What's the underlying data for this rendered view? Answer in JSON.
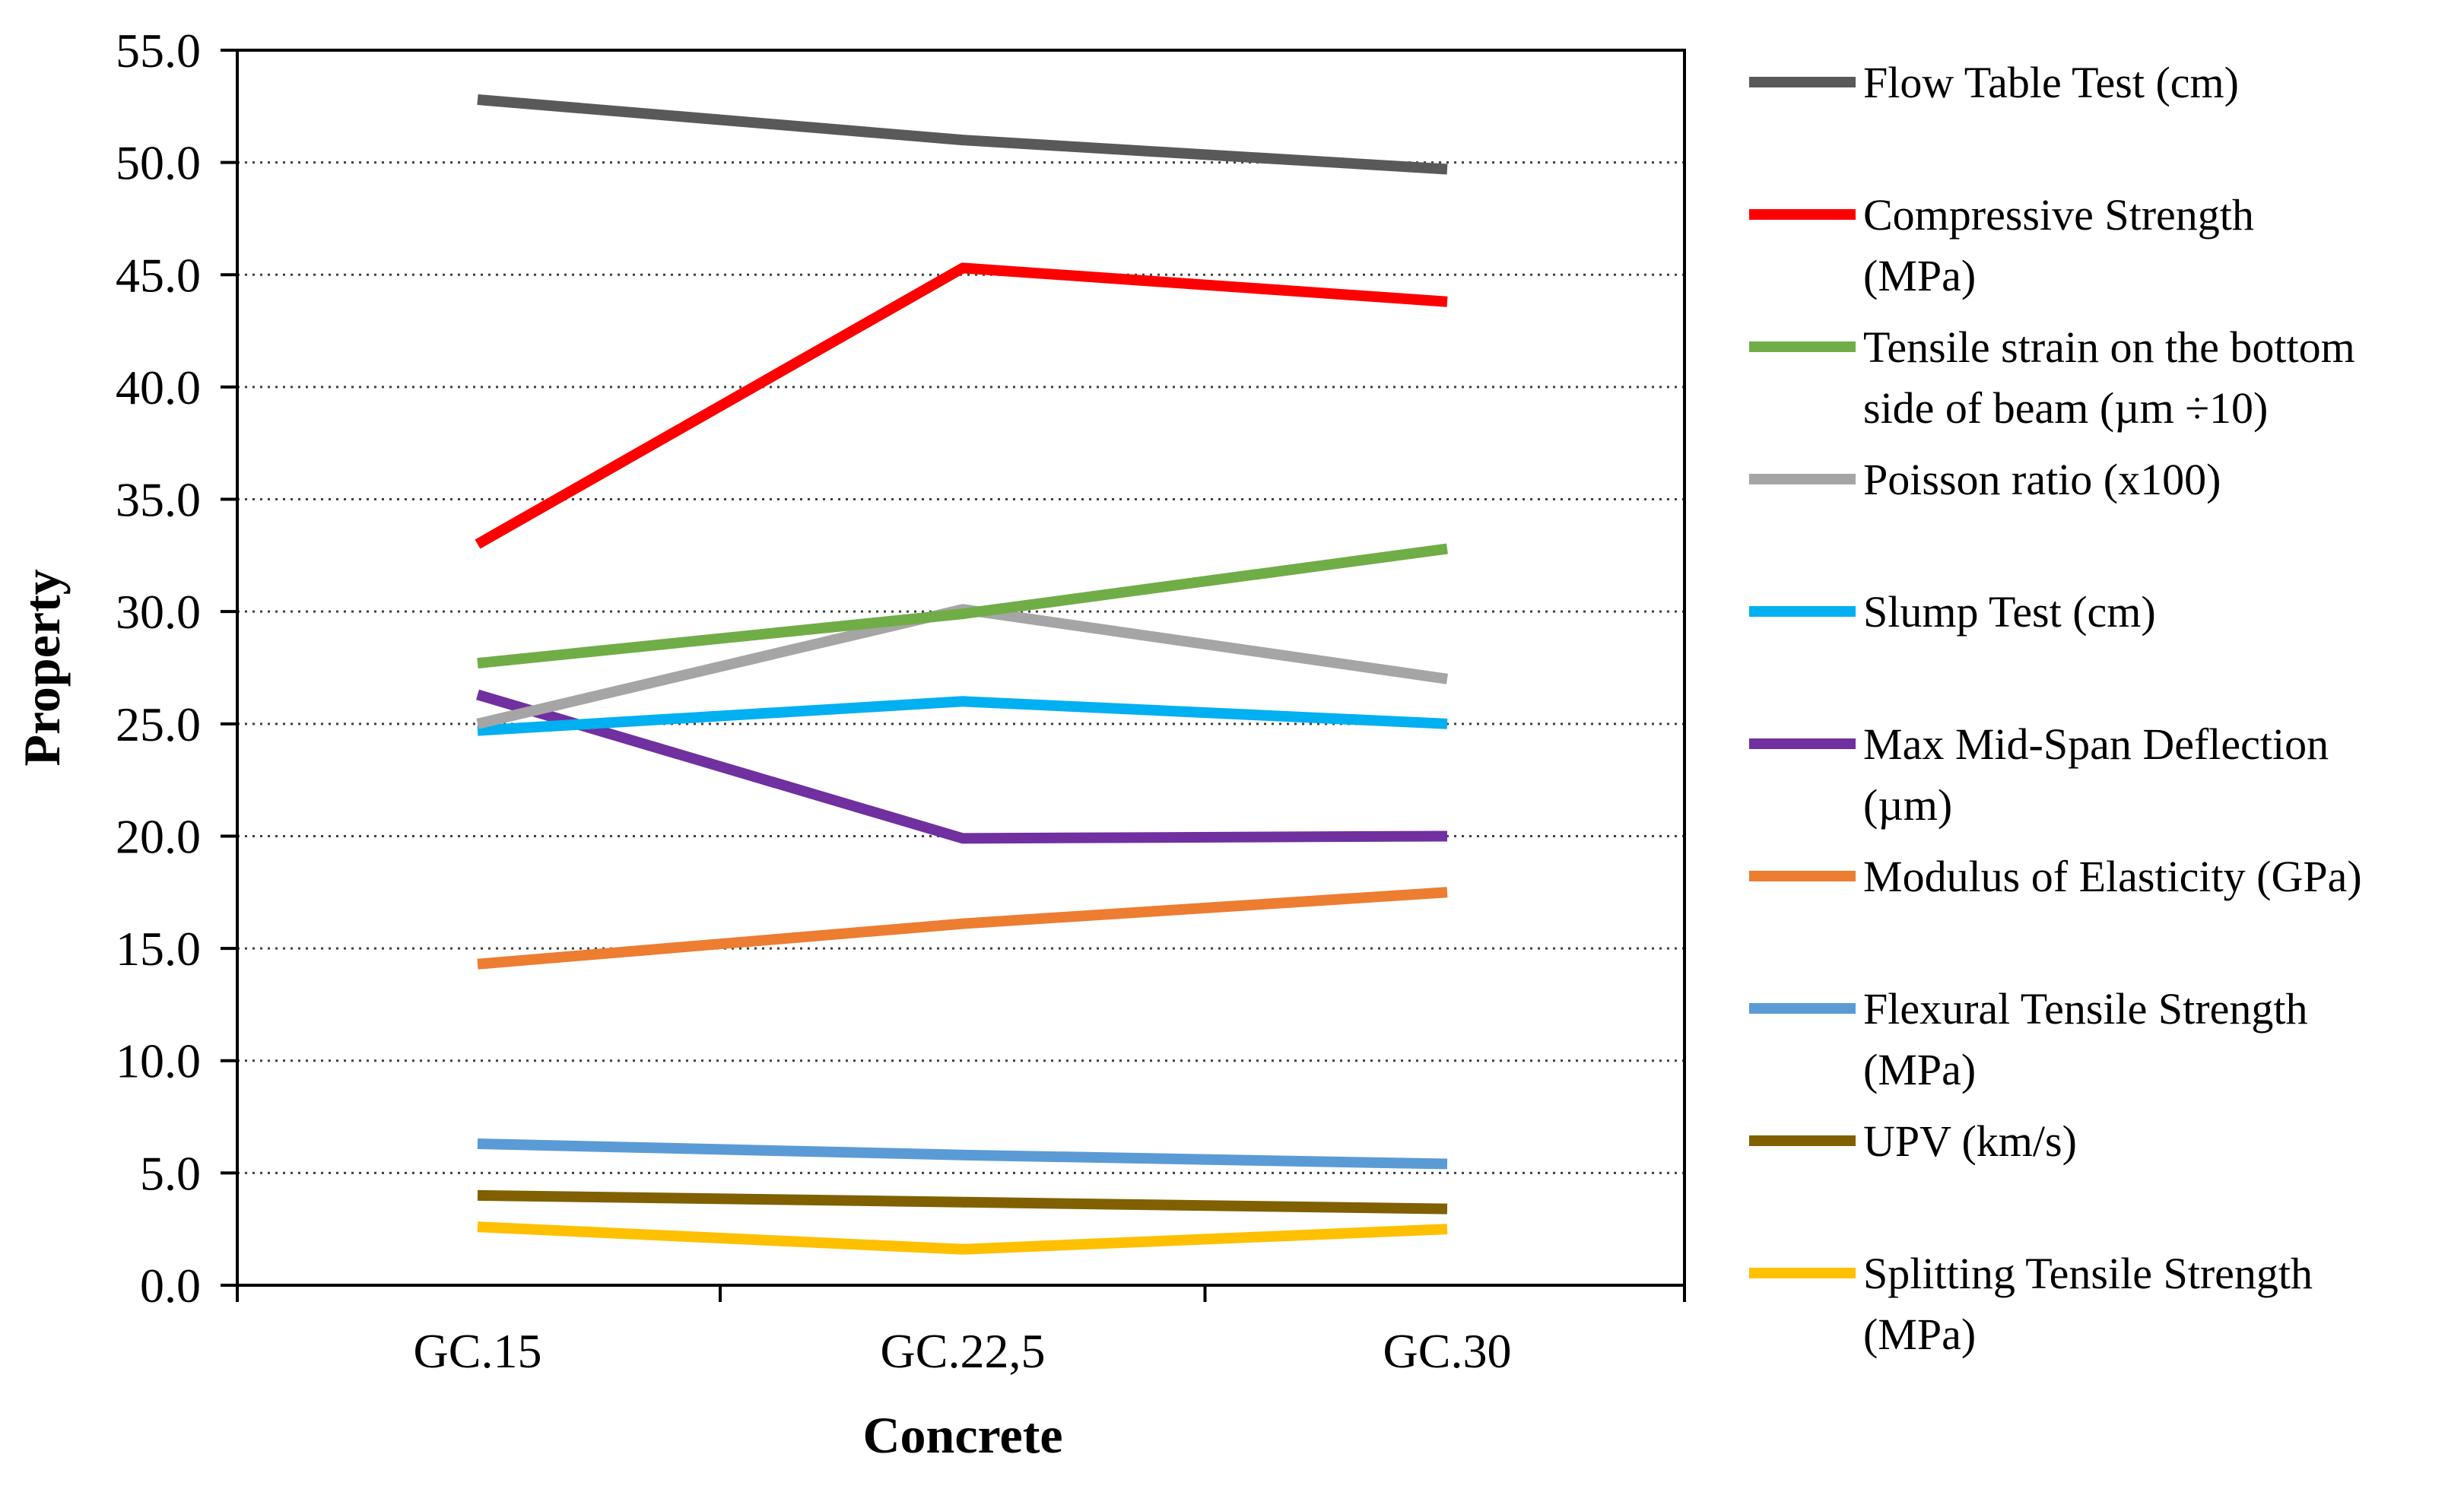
{
  "chart_data": {
    "type": "line",
    "title": "",
    "xlabel": "Concrete",
    "ylabel": "Property",
    "categories": [
      "GC.15",
      "GC.22,5",
      "GC.30"
    ],
    "ylim": [
      0,
      55
    ],
    "ytick_step": 5,
    "yticks": [
      "0.0",
      "5.0",
      "10.0",
      "15.0",
      "20.0",
      "25.0",
      "30.0",
      "35.0",
      "40.0",
      "45.0",
      "50.0",
      "55.0"
    ],
    "grid": "horizontal dotted",
    "legend_position": "right",
    "series": [
      {
        "name": "Flow Table Test (cm)",
        "label_lines": [
          "Flow Table Test (cm)"
        ],
        "color": "#595959",
        "values": [
          52.8,
          51.0,
          49.7
        ]
      },
      {
        "name": "Compressive Strength (MPa)",
        "label_lines": [
          "Compressive Strength",
          "(MPa)"
        ],
        "color": "#FF0000",
        "values": [
          33.0,
          45.3,
          43.8
        ]
      },
      {
        "name": "Tensile strain on the bottom side of beam (µm ÷10)",
        "label_lines": [
          "Tensile strain on the bottom",
          "side of beam (µm ÷10)"
        ],
        "color": "#70AD47",
        "values": [
          27.7,
          29.9,
          32.8
        ]
      },
      {
        "name": "Poisson ratio (x100)",
        "label_lines": [
          "Poisson ratio (x100)"
        ],
        "color": "#A5A5A5",
        "values": [
          25.0,
          30.1,
          27.0
        ]
      },
      {
        "name": "Slump Test (cm)",
        "label_lines": [
          "Slump Test (cm)"
        ],
        "color": "#00B0F0",
        "values": [
          24.7,
          26.0,
          25.0
        ]
      },
      {
        "name": "Max Mid-Span Deflection (µm)",
        "label_lines": [
          "Max Mid-Span Deflection",
          "(µm)"
        ],
        "color": "#7030A0",
        "values": [
          26.3,
          19.9,
          20.0
        ]
      },
      {
        "name": "Modulus of Elasticity (GPa)",
        "label_lines": [
          "Modulus of Elasticity (GPa)"
        ],
        "color": "#ED7D31",
        "values": [
          14.3,
          16.1,
          17.5
        ]
      },
      {
        "name": "Flexural Tensile Strength (MPa)",
        "label_lines": [
          "Flexural Tensile Strength",
          "(MPa)"
        ],
        "color": "#5B9BD5",
        "values": [
          6.3,
          5.8,
          5.4
        ]
      },
      {
        "name": "UPV (km/s)",
        "label_lines": [
          "UPV (km/s)"
        ],
        "color": "#806000",
        "values": [
          4.0,
          3.7,
          3.4
        ]
      },
      {
        "name": "Splitting Tensile Strength (MPa)",
        "label_lines": [
          "Splitting Tensile Strength",
          "(MPa)"
        ],
        "color": "#FFC000",
        "values": [
          2.6,
          1.6,
          2.5
        ]
      }
    ]
  }
}
